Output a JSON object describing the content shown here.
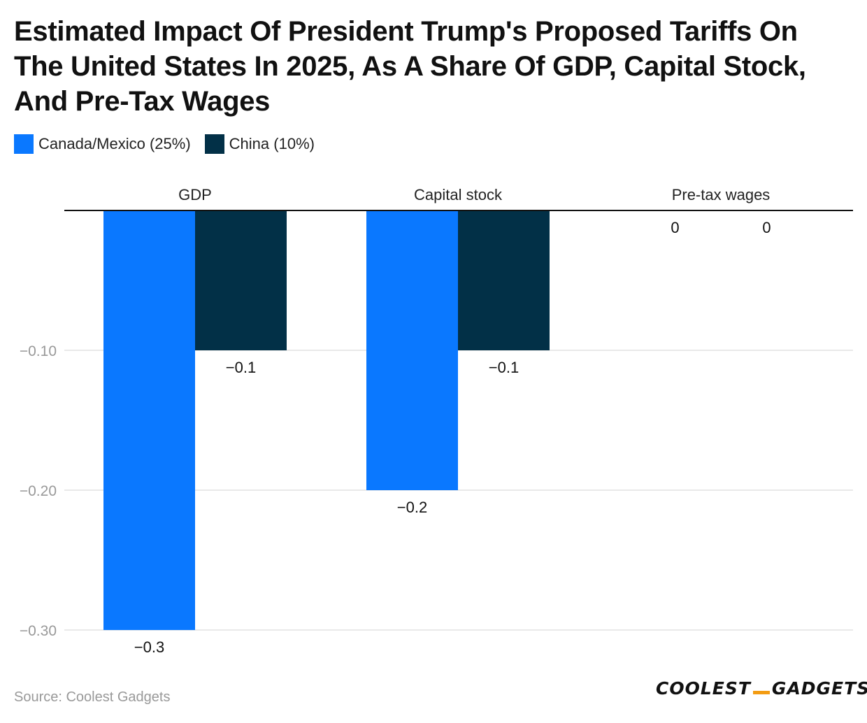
{
  "title": "Estimated Impact Of President Trump's Proposed Tariffs On The United States In 2025, As A Share Of GDP, Capital Stock, And Pre-Tax Wages",
  "legend": [
    {
      "label": "Canada/Mexico (25%)",
      "color": "#0a78ff"
    },
    {
      "label": "China (10%)",
      "color": "#023047"
    }
  ],
  "chart_data": {
    "type": "bar",
    "title": "Estimated Impact Of President Trump's Proposed Tariffs On The United States In 2025, As A Share Of GDP, Capital Stock, And Pre-Tax Wages",
    "categories": [
      "GDP",
      "Capital stock",
      "Pre-tax wages"
    ],
    "series": [
      {
        "name": "Canada/Mexico (25%)",
        "color": "#0a78ff",
        "values": [
          -0.3,
          -0.2,
          0
        ],
        "labels": [
          "−0.3",
          "−0.2",
          "0"
        ]
      },
      {
        "name": "China (10%)",
        "color": "#023047",
        "values": [
          -0.1,
          -0.1,
          0
        ],
        "labels": [
          "−0.1",
          "−0.1",
          "0"
        ]
      }
    ],
    "ylim": [
      -0.3,
      0
    ],
    "yticks": [
      -0.1,
      -0.2,
      -0.3
    ],
    "ytick_labels": [
      "−0.10",
      "−0.20",
      "−0.30"
    ],
    "xlabel": "",
    "ylabel": "",
    "grid": true,
    "legend_position": "top-left"
  },
  "source": "Source: Coolest Gadgets",
  "logo": {
    "left": "COOLEST",
    "right": "GADGETS",
    "accent": "#f39c12"
  }
}
